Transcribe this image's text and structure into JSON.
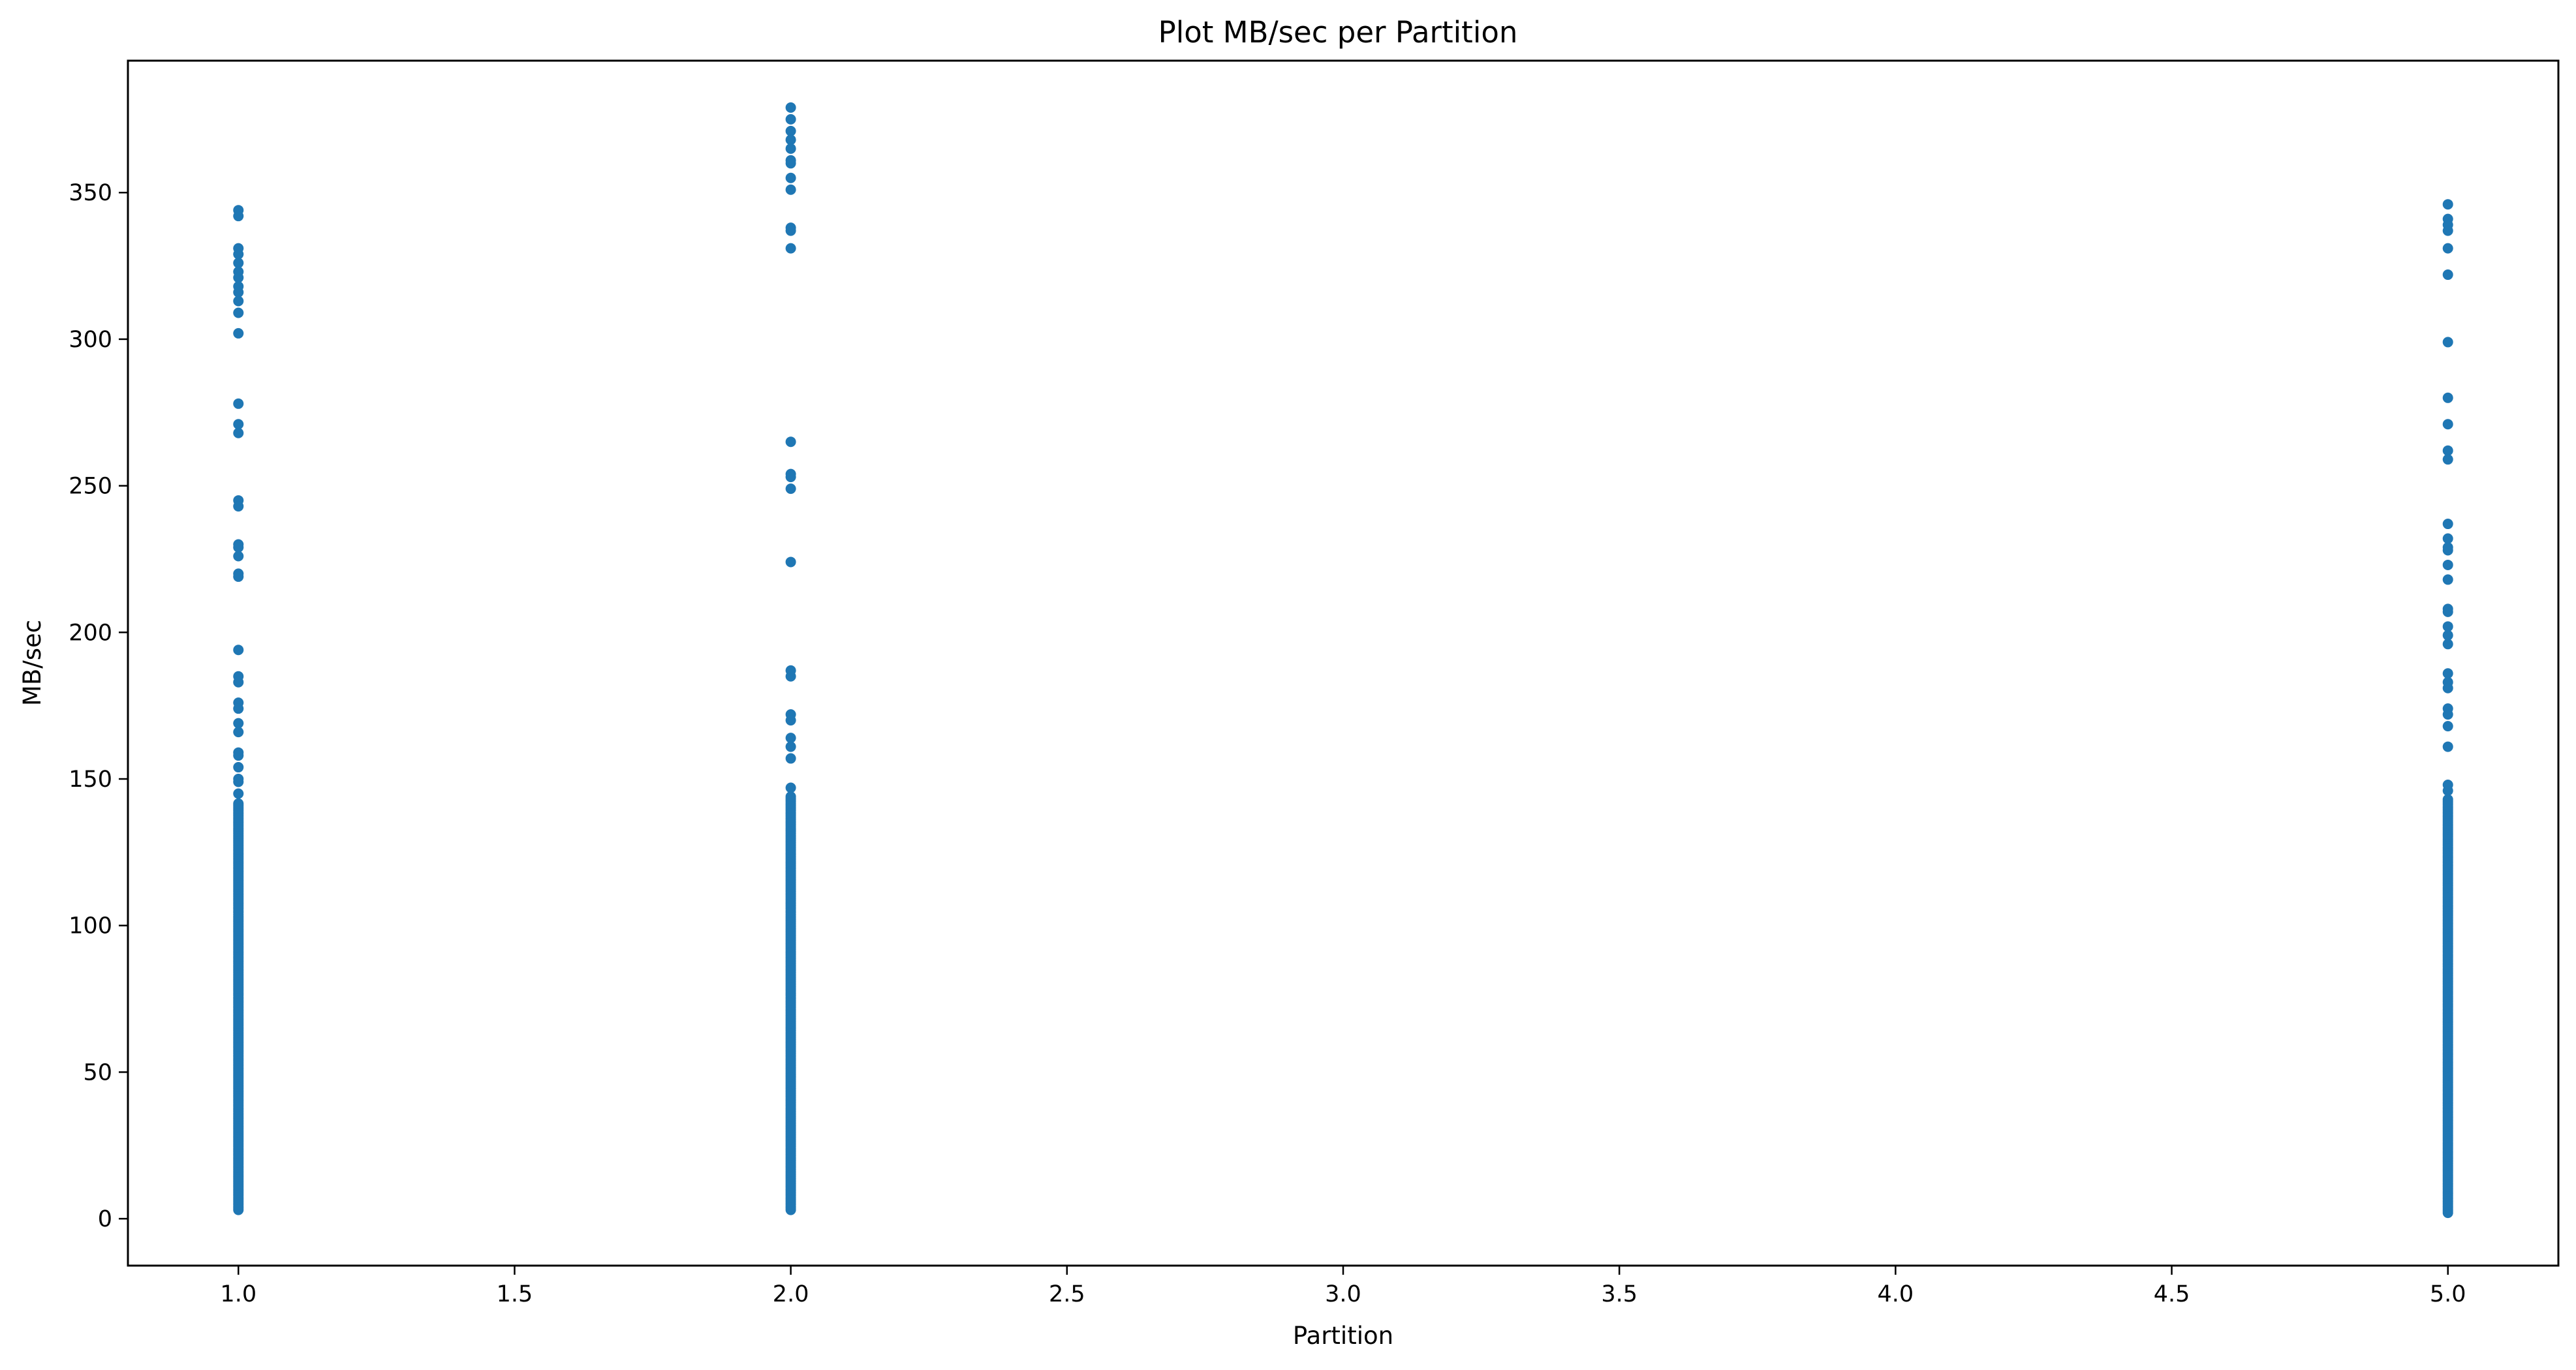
{
  "chart_data": {
    "type": "scatter",
    "title": "Plot MB/sec per Partition",
    "xlabel": "Partition",
    "ylabel": "MB/sec",
    "xlim": [
      0.8,
      5.2
    ],
    "ylim": [
      -16,
      395
    ],
    "xticks": [
      1.0,
      1.5,
      2.0,
      2.5,
      3.0,
      3.5,
      4.0,
      4.5,
      5.0
    ],
    "xtick_labels": [
      "1.0",
      "1.5",
      "2.0",
      "2.5",
      "3.0",
      "3.5",
      "4.0",
      "4.5",
      "5.0"
    ],
    "yticks": [
      0,
      50,
      100,
      150,
      200,
      250,
      300,
      350
    ],
    "ytick_labels": [
      "0",
      "50",
      "100",
      "150",
      "200",
      "250",
      "300",
      "350"
    ],
    "grid": false,
    "marker_color": "#1f77b4",
    "series": [
      {
        "x": 1.0,
        "dense_range": [
          3,
          142
        ],
        "y": [
          344,
          342,
          331,
          329,
          326,
          323,
          321,
          318,
          316,
          313,
          309,
          302,
          278,
          271,
          268,
          245,
          243,
          230,
          229,
          226,
          220,
          219,
          194,
          185,
          183,
          176,
          174,
          169,
          166,
          159,
          158,
          154,
          150,
          149,
          145
        ]
      },
      {
        "x": 2.0,
        "dense_range": [
          3,
          144
        ],
        "y": [
          379,
          375,
          371,
          368,
          365,
          361,
          360,
          355,
          351,
          338,
          337,
          331,
          265,
          254,
          253,
          249,
          224,
          187,
          185,
          172,
          170,
          164,
          161,
          157,
          147
        ]
      },
      {
        "x": 5.0,
        "dense_range": [
          2,
          143
        ],
        "y": [
          346,
          341,
          339,
          337,
          331,
          322,
          299,
          280,
          271,
          262,
          259,
          237,
          232,
          229,
          228,
          223,
          218,
          208,
          207,
          202,
          199,
          196,
          186,
          183,
          181,
          174,
          172,
          168,
          161,
          148,
          146
        ]
      }
    ]
  }
}
